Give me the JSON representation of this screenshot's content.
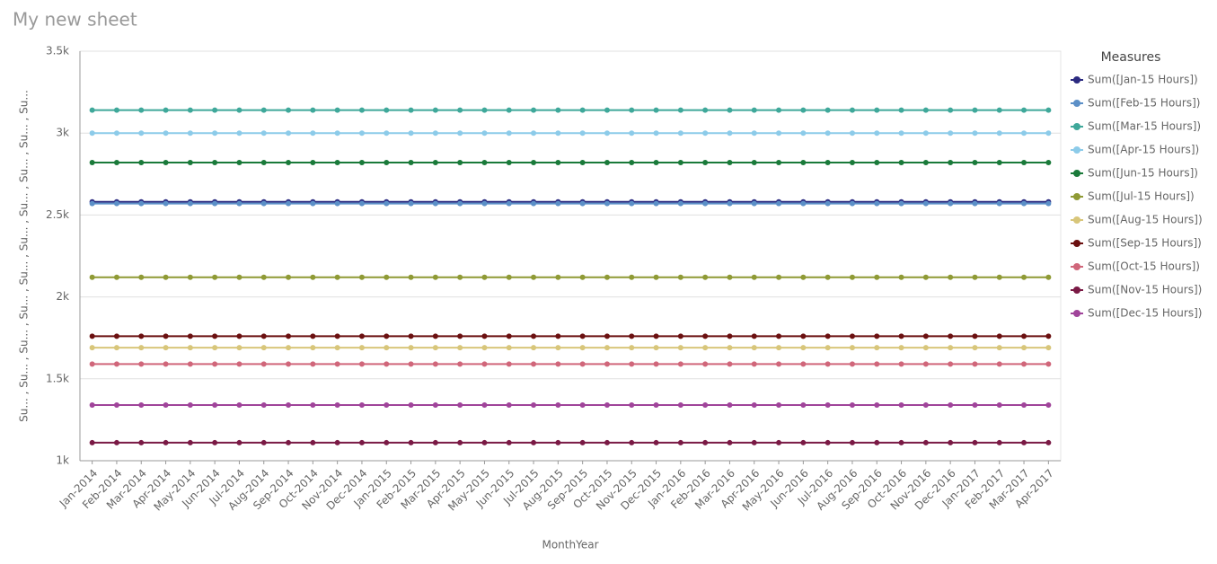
{
  "chart_data": {
    "type": "line",
    "title": "My new sheet",
    "y_label": "Su... , Su... , Su... , Su... , Su... , Su... , Su... , Su... , Su... , Su...",
    "x_label": "MonthYear",
    "legend_title": "Measures",
    "legend": "right",
    "grid": true,
    "ylim": [
      1000,
      3500
    ],
    "yticks": [
      {
        "value": 1000,
        "label": "1k"
      },
      {
        "value": 1500,
        "label": "1.5k"
      },
      {
        "value": 2000,
        "label": "2k"
      },
      {
        "value": 2500,
        "label": "2.5k"
      },
      {
        "value": 3000,
        "label": "3k"
      },
      {
        "value": 3500,
        "label": "3.5k"
      }
    ],
    "categories": [
      "Jan-2014",
      "Feb-2014",
      "Mar-2014",
      "Apr-2014",
      "May-2014",
      "Jun-2014",
      "Jul-2014",
      "Aug-2014",
      "Sep-2014",
      "Oct-2014",
      "Nov-2014",
      "Dec-2014",
      "Jan-2015",
      "Feb-2015",
      "Mar-2015",
      "Apr-2015",
      "May-2015",
      "Jun-2015",
      "Jul-2015",
      "Aug-2015",
      "Sep-2015",
      "Oct-2015",
      "Nov-2015",
      "Dec-2015",
      "Jan-2016",
      "Feb-2016",
      "Mar-2016",
      "Apr-2016",
      "May-2016",
      "Jun-2016",
      "Jul-2016",
      "Aug-2016",
      "Sep-2016",
      "Oct-2016",
      "Nov-2016",
      "Dec-2016",
      "Jan-2017",
      "Feb-2017",
      "Mar-2017",
      "Apr-2017"
    ],
    "series": [
      {
        "name": "Sum([Jan-15 Hours])",
        "color": "#2b2a80",
        "values": [
          2580,
          2580,
          2580,
          2580,
          2580,
          2580,
          2580,
          2580,
          2580,
          2580,
          2580,
          2580,
          2580,
          2580,
          2580,
          2580,
          2580,
          2580,
          2580,
          2580,
          2580,
          2580,
          2580,
          2580,
          2580,
          2580,
          2580,
          2580,
          2580,
          2580,
          2580,
          2580,
          2580,
          2580,
          2580,
          2580,
          2580,
          2580,
          2580,
          2580
        ]
      },
      {
        "name": "Sum([Feb-15 Hours])",
        "color": "#5b8fc7",
        "values": [
          2570,
          2570,
          2570,
          2570,
          2570,
          2570,
          2570,
          2570,
          2570,
          2570,
          2570,
          2570,
          2570,
          2570,
          2570,
          2570,
          2570,
          2570,
          2570,
          2570,
          2570,
          2570,
          2570,
          2570,
          2570,
          2570,
          2570,
          2570,
          2570,
          2570,
          2570,
          2570,
          2570,
          2570,
          2570,
          2570,
          2570,
          2570,
          2570,
          2570
        ]
      },
      {
        "name": "Sum([Mar-15 Hours])",
        "color": "#3fa89a",
        "values": [
          3140,
          3140,
          3140,
          3140,
          3140,
          3140,
          3140,
          3140,
          3140,
          3140,
          3140,
          3140,
          3140,
          3140,
          3140,
          3140,
          3140,
          3140,
          3140,
          3140,
          3140,
          3140,
          3140,
          3140,
          3140,
          3140,
          3140,
          3140,
          3140,
          3140,
          3140,
          3140,
          3140,
          3140,
          3140,
          3140,
          3140,
          3140,
          3140,
          3140
        ]
      },
      {
        "name": "Sum([Apr-15 Hours])",
        "color": "#8ccbe9",
        "values": [
          3000,
          3000,
          3000,
          3000,
          3000,
          3000,
          3000,
          3000,
          3000,
          3000,
          3000,
          3000,
          3000,
          3000,
          3000,
          3000,
          3000,
          3000,
          3000,
          3000,
          3000,
          3000,
          3000,
          3000,
          3000,
          3000,
          3000,
          3000,
          3000,
          3000,
          3000,
          3000,
          3000,
          3000,
          3000,
          3000,
          3000,
          3000,
          3000,
          3000
        ]
      },
      {
        "name": "Sum([Jun-15 Hours])",
        "color": "#1a7a3a",
        "values": [
          2820,
          2820,
          2820,
          2820,
          2820,
          2820,
          2820,
          2820,
          2820,
          2820,
          2820,
          2820,
          2820,
          2820,
          2820,
          2820,
          2820,
          2820,
          2820,
          2820,
          2820,
          2820,
          2820,
          2820,
          2820,
          2820,
          2820,
          2820,
          2820,
          2820,
          2820,
          2820,
          2820,
          2820,
          2820,
          2820,
          2820,
          2820,
          2820,
          2820
        ]
      },
      {
        "name": "Sum([Jul-15 Hours])",
        "color": "#8f9a35",
        "values": [
          2120,
          2120,
          2120,
          2120,
          2120,
          2120,
          2120,
          2120,
          2120,
          2120,
          2120,
          2120,
          2120,
          2120,
          2120,
          2120,
          2120,
          2120,
          2120,
          2120,
          2120,
          2120,
          2120,
          2120,
          2120,
          2120,
          2120,
          2120,
          2120,
          2120,
          2120,
          2120,
          2120,
          2120,
          2120,
          2120,
          2120,
          2120,
          2120,
          2120
        ]
      },
      {
        "name": "Sum([Aug-15 Hours])",
        "color": "#d8c67a",
        "values": [
          1690,
          1690,
          1690,
          1690,
          1690,
          1690,
          1690,
          1690,
          1690,
          1690,
          1690,
          1690,
          1690,
          1690,
          1690,
          1690,
          1690,
          1690,
          1690,
          1690,
          1690,
          1690,
          1690,
          1690,
          1690,
          1690,
          1690,
          1690,
          1690,
          1690,
          1690,
          1690,
          1690,
          1690,
          1690,
          1690,
          1690,
          1690,
          1690,
          1690
        ]
      },
      {
        "name": "Sum([Sep-15 Hours])",
        "color": "#6b1010",
        "values": [
          1760,
          1760,
          1760,
          1760,
          1760,
          1760,
          1760,
          1760,
          1760,
          1760,
          1760,
          1760,
          1760,
          1760,
          1760,
          1760,
          1760,
          1760,
          1760,
          1760,
          1760,
          1760,
          1760,
          1760,
          1760,
          1760,
          1760,
          1760,
          1760,
          1760,
          1760,
          1760,
          1760,
          1760,
          1760,
          1760,
          1760,
          1760,
          1760,
          1760
        ]
      },
      {
        "name": "Sum([Oct-15 Hours])",
        "color": "#d0667a",
        "values": [
          1590,
          1590,
          1590,
          1590,
          1590,
          1590,
          1590,
          1590,
          1590,
          1590,
          1590,
          1590,
          1590,
          1590,
          1590,
          1590,
          1590,
          1590,
          1590,
          1590,
          1590,
          1590,
          1590,
          1590,
          1590,
          1590,
          1590,
          1590,
          1590,
          1590,
          1590,
          1590,
          1590,
          1590,
          1590,
          1590,
          1590,
          1590,
          1590,
          1590
        ]
      },
      {
        "name": "Sum([Nov-15 Hours])",
        "color": "#7a1a45",
        "values": [
          1110,
          1110,
          1110,
          1110,
          1110,
          1110,
          1110,
          1110,
          1110,
          1110,
          1110,
          1110,
          1110,
          1110,
          1110,
          1110,
          1110,
          1110,
          1110,
          1110,
          1110,
          1110,
          1110,
          1110,
          1110,
          1110,
          1110,
          1110,
          1110,
          1110,
          1110,
          1110,
          1110,
          1110,
          1110,
          1110,
          1110,
          1110,
          1110,
          1110
        ]
      },
      {
        "name": "Sum([Dec-15 Hours])",
        "color": "#a0449a",
        "values": [
          1340,
          1340,
          1340,
          1340,
          1340,
          1340,
          1340,
          1340,
          1340,
          1340,
          1340,
          1340,
          1340,
          1340,
          1340,
          1340,
          1340,
          1340,
          1340,
          1340,
          1340,
          1340,
          1340,
          1340,
          1340,
          1340,
          1340,
          1340,
          1340,
          1340,
          1340,
          1340,
          1340,
          1340,
          1340,
          1340,
          1340,
          1340,
          1340,
          1340
        ]
      }
    ]
  }
}
